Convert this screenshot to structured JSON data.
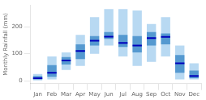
{
  "chart_data": {
    "type": "range_bar",
    "categories": [
      "Jan",
      "Feb",
      "Mar",
      "Apr",
      "May",
      "Jun",
      "Jul",
      "Aug",
      "Sep",
      "Oct",
      "Nov",
      "Dec"
    ],
    "ylabel": "Monthly Rainfall (mm)",
    "series": [
      {
        "type": "bar",
        "color": "#b8d9f2",
        "low": [
          0,
          5,
          40,
          55,
          100,
          130,
          90,
          55,
          70,
          90,
          5,
          5
        ],
        "high": [
          25,
          90,
          105,
          170,
          235,
          265,
          265,
          260,
          210,
          235,
          130,
          65
        ]
      },
      {
        "type": "bar",
        "color": "#5599d0",
        "low": [
          5,
          15,
          60,
          80,
          130,
          155,
          125,
          105,
          130,
          135,
          30,
          10
        ],
        "high": [
          18,
          58,
          88,
          135,
          165,
          180,
          170,
          165,
          180,
          175,
          95,
          38
        ]
      },
      {
        "type": "median",
        "marker": "hline",
        "color": "#0000bb",
        "values": [
          10,
          30,
          75,
          110,
          148,
          163,
          140,
          130,
          158,
          162,
          65,
          18
        ]
      }
    ],
    "ylim": [
      -10,
      280
    ],
    "yticks": [
      0,
      100,
      200
    ],
    "grid": false
  }
}
